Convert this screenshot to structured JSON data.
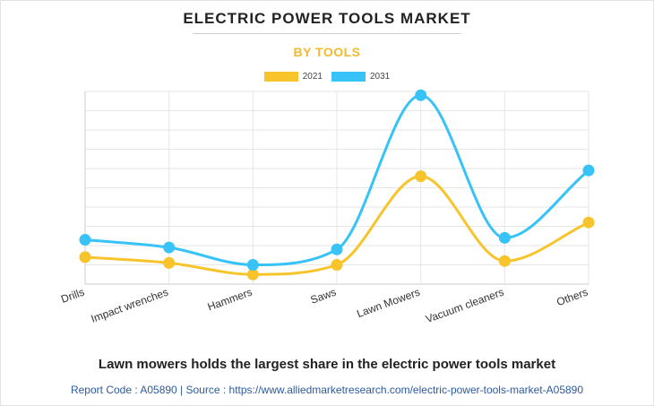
{
  "header": {
    "title": "ELECTRIC POWER TOOLS MARKET",
    "subtitle": "BY TOOLS"
  },
  "legend": {
    "items": [
      {
        "label": "2021",
        "color": "#f7c42c"
      },
      {
        "label": "2031",
        "color": "#37c3f7"
      }
    ]
  },
  "chart_data": {
    "type": "line",
    "categories": [
      "Drills",
      "Impact wrenches",
      "Hammers",
      "Saws",
      "Lawn Mowers",
      "Vacuum cleaners",
      "Others"
    ],
    "series": [
      {
        "name": "2021",
        "color": "#f7c42c",
        "values": [
          14,
          11,
          5,
          10,
          56,
          12,
          32
        ]
      },
      {
        "name": "2031",
        "color": "#37c3f7",
        "values": [
          23,
          19,
          10,
          18,
          98,
          24,
          59
        ]
      }
    ],
    "ylim": [
      0,
      100
    ],
    "grid": true,
    "legend_position": "top-center",
    "smooth": true
  },
  "caption": "Lawn mowers holds the largest share in the electric power tools market",
  "footer": "Report Code : A05890  |  Source : https://www.alliedmarketresearch.com/electric-power-tools-market-A05890"
}
